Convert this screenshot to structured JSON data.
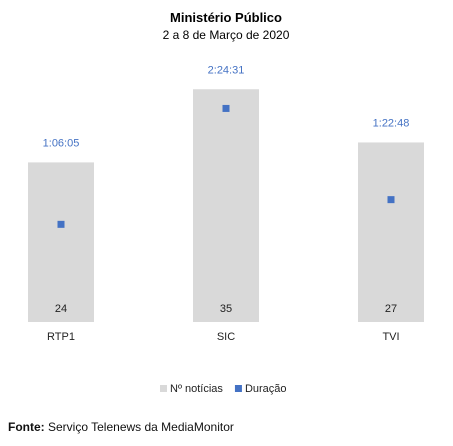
{
  "chart_data": {
    "type": "bar",
    "title": "Ministério Público",
    "subtitle": "2 a 8 de Março de 2020",
    "categories": [
      "RTP1",
      "SIC",
      "TVI"
    ],
    "series": [
      {
        "name": "Nº notícias",
        "values": [
          24,
          35,
          27
        ],
        "color": "#d9d9d9",
        "axis": "primary",
        "mark": "bar"
      },
      {
        "name": "Duração",
        "values": [
          "1:06:05",
          "2:24:31",
          "1:22:48"
        ],
        "values_seconds": [
          3965,
          8671,
          4968
        ],
        "color": "#4472c4",
        "axis": "secondary",
        "mark": "square"
      }
    ],
    "primary_axis_max": 40,
    "secondary_axis_seconds_max": 10800,
    "grid": false,
    "legend_position": "bottom"
  },
  "source": {
    "label": "Fonte:",
    "text": "Serviço Telenews da MediaMonitor"
  }
}
